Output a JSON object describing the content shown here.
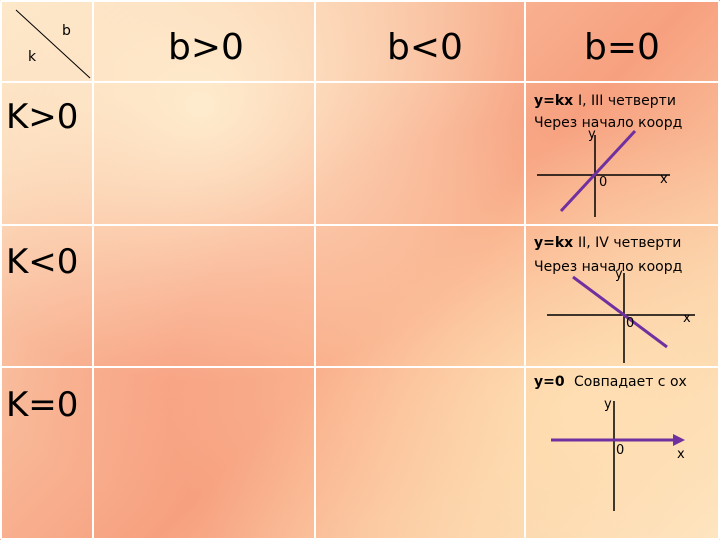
{
  "corner": {
    "b_label": "b",
    "k_label": "k"
  },
  "columns": [
    {
      "label": "b>0"
    },
    {
      "label": "b<0"
    },
    {
      "label": "b=0"
    }
  ],
  "rows": [
    {
      "label": "K>0"
    },
    {
      "label": "K<0"
    },
    {
      "label": "K=0"
    }
  ],
  "cells": {
    "k_pos_b_zero": {
      "formula": "y=kx",
      "quarters": "I, III  четверти",
      "through": "Через начало коорд",
      "y_axis": "y",
      "x_axis": "x",
      "origin": "0"
    },
    "k_neg_b_zero": {
      "formula": "y=kx",
      "quarters": "II, IV  четверти",
      "through": "Через начало коорд",
      "y_axis": "y",
      "x_axis": "x",
      "origin": "0"
    },
    "k_zero_b_zero": {
      "formula": "y=0",
      "coincides": "Совпадает с ох",
      "y_axis": "y",
      "x_axis": "x",
      "origin": "0"
    }
  },
  "colors": {
    "line": "#7030a0",
    "grid": "#ffffff",
    "axis": "#000000"
  }
}
